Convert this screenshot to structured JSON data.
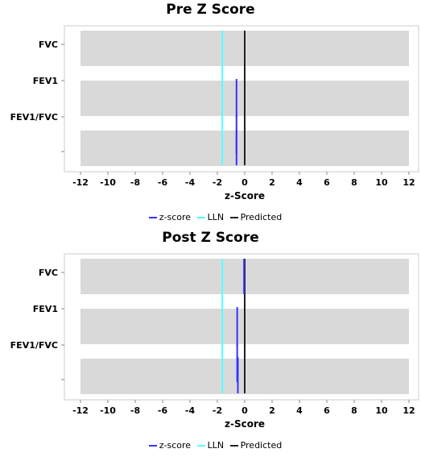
{
  "chart_data": [
    {
      "type": "bar",
      "title": "Pre Z Score",
      "categories": [
        "FVC",
        "FEV1",
        "FEV1/FVC",
        ""
      ],
      "xlabel": "z-Score",
      "ylabel": "",
      "xlim": [
        -12,
        12
      ],
      "xticks": [
        "-12",
        "-10",
        "-8",
        "-6",
        "-4",
        "-2",
        "0",
        "2",
        "4",
        "6",
        "8",
        "10",
        "12"
      ],
      "series": [
        {
          "name": "z-score",
          "color": "#3333ff",
          "values": [
            null,
            -0.6,
            -0.6,
            -0.6
          ]
        },
        {
          "name": "LLN",
          "color": "#55ffff",
          "values": [
            -1.64,
            -1.64,
            -1.64,
            -1.64
          ]
        },
        {
          "name": "Predicted",
          "color": "#222222",
          "values": [
            0,
            0,
            0,
            0
          ]
        }
      ]
    },
    {
      "type": "bar",
      "title": "Post Z Score",
      "categories": [
        "FVC",
        "FEV1",
        "FEV1/FVC",
        ""
      ],
      "xlabel": "z-Score",
      "ylabel": "",
      "xlim": [
        -12,
        12
      ],
      "xticks": [
        "-12",
        "-10",
        "-8",
        "-6",
        "-4",
        "-2",
        "0",
        "2",
        "4",
        "6",
        "8",
        "10",
        "12"
      ],
      "series": [
        {
          "name": "z-score",
          "color": "#3333ff",
          "values": [
            -0.05,
            -0.55,
            -0.55,
            -0.5
          ]
        },
        {
          "name": "LLN",
          "color": "#55ffff",
          "values": [
            -1.64,
            -1.64,
            -1.64,
            -1.64
          ]
        },
        {
          "name": "Predicted",
          "color": "#222222",
          "values": [
            0,
            0,
            0,
            0
          ]
        }
      ]
    }
  ]
}
